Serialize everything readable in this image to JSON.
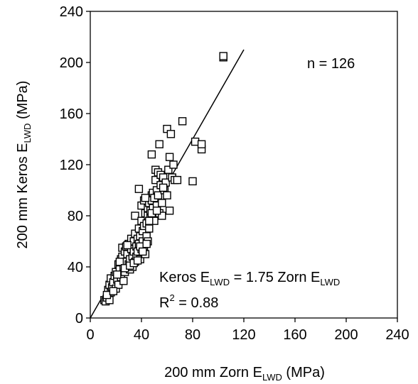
{
  "chart_data": {
    "type": "scatter",
    "title": "",
    "xlabel": {
      "prefix": "200 mm Zorn E",
      "sub": "LWD",
      "suffix": " (MPa)"
    },
    "ylabel": {
      "prefix": "200 mm Keros E",
      "sub": "LWD",
      "suffix": " (MPa)"
    },
    "xlim": [
      0,
      240
    ],
    "ylim": [
      0,
      240
    ],
    "xticks": [
      "0",
      "40",
      "80",
      "120",
      "160",
      "200",
      "240"
    ],
    "yticks": [
      "0",
      "40",
      "80",
      "120",
      "160",
      "200",
      "240"
    ],
    "grid": false,
    "legend": "none",
    "marker": "open-square",
    "annotations": {
      "n": "n = 126",
      "equation": {
        "a": "Keros E",
        "a_sub": "LWD",
        "b": " = 1.75 Zorn E",
        "b_sub": "LWD"
      },
      "r2": {
        "a": "R",
        "sup": "2",
        "b": " = 0.88"
      }
    },
    "fit_line": {
      "slope": 1.75,
      "intercept": 0,
      "x_range": [
        0,
        120
      ]
    },
    "points": [
      [
        11,
        14
      ],
      [
        12,
        13
      ],
      [
        13,
        16
      ],
      [
        14,
        22
      ],
      [
        15,
        14
      ],
      [
        15,
        26
      ],
      [
        16,
        20
      ],
      [
        16,
        31
      ],
      [
        17,
        24
      ],
      [
        18,
        28
      ],
      [
        19,
        33
      ],
      [
        20,
        23
      ],
      [
        20,
        36
      ],
      [
        21,
        30
      ],
      [
        22,
        26
      ],
      [
        22,
        42
      ],
      [
        23,
        38
      ],
      [
        24,
        46
      ],
      [
        24,
        32
      ],
      [
        25,
        48
      ],
      [
        25,
        55
      ],
      [
        26,
        40
      ],
      [
        26,
        29
      ],
      [
        27,
        52
      ],
      [
        27,
        36
      ],
      [
        28,
        44
      ],
      [
        28,
        56
      ],
      [
        29,
        50
      ],
      [
        30,
        42
      ],
      [
        30,
        58
      ],
      [
        31,
        46
      ],
      [
        31,
        38
      ],
      [
        32,
        54
      ],
      [
        32,
        62
      ],
      [
        33,
        48
      ],
      [
        33,
        40
      ],
      [
        34,
        60
      ],
      [
        34,
        52
      ],
      [
        35,
        44
      ],
      [
        35,
        66
      ],
      [
        35,
        80
      ],
      [
        36,
        56
      ],
      [
        36,
        48
      ],
      [
        37,
        62
      ],
      [
        37,
        52
      ],
      [
        38,
        70
      ],
      [
        38,
        58
      ],
      [
        38,
        101
      ],
      [
        39,
        46
      ],
      [
        39,
        64
      ],
      [
        40,
        76
      ],
      [
        40,
        54
      ],
      [
        40,
        88
      ],
      [
        41,
        60
      ],
      [
        41,
        68
      ],
      [
        42,
        56
      ],
      [
        42,
        72
      ],
      [
        42,
        92
      ],
      [
        43,
        50
      ],
      [
        43,
        82
      ],
      [
        44,
        64
      ],
      [
        44,
        74
      ],
      [
        45,
        60
      ],
      [
        45,
        86
      ],
      [
        45,
        80
      ],
      [
        46,
        90
      ],
      [
        46,
        70
      ],
      [
        47,
        78
      ],
      [
        47,
        84
      ],
      [
        48,
        128
      ],
      [
        48,
        96
      ],
      [
        48,
        92
      ],
      [
        49,
        86
      ],
      [
        49,
        98
      ],
      [
        50,
        80
      ],
      [
        50,
        94
      ],
      [
        50,
        76
      ],
      [
        51,
        108
      ],
      [
        51,
        116
      ],
      [
        52,
        88
      ],
      [
        52,
        100
      ],
      [
        53,
        114
      ],
      [
        53,
        96
      ],
      [
        54,
        82
      ],
      [
        54,
        136
      ],
      [
        55,
        112
      ],
      [
        55,
        104
      ],
      [
        56,
        80
      ],
      [
        56,
        90
      ],
      [
        57,
        110
      ],
      [
        58,
        100
      ],
      [
        59,
        106
      ],
      [
        60,
        148
      ],
      [
        60,
        96
      ],
      [
        61,
        116
      ],
      [
        62,
        126
      ],
      [
        62,
        84
      ],
      [
        63,
        144
      ],
      [
        64,
        110
      ],
      [
        65,
        120
      ],
      [
        66,
        108
      ],
      [
        68,
        108
      ],
      [
        72,
        154
      ],
      [
        80,
        107
      ],
      [
        82,
        138
      ],
      [
        87,
        132
      ],
      [
        87,
        136
      ],
      [
        104,
        204
      ],
      [
        104,
        205
      ],
      [
        13,
        18
      ],
      [
        18,
        21
      ],
      [
        21,
        34
      ],
      [
        23,
        44
      ],
      [
        27,
        39
      ],
      [
        29,
        57
      ],
      [
        31,
        41
      ],
      [
        34,
        43
      ],
      [
        37,
        45
      ],
      [
        39,
        56
      ],
      [
        41,
        52
      ],
      [
        44,
        58
      ],
      [
        46,
        76
      ],
      [
        48,
        82
      ],
      [
        52,
        84
      ],
      [
        57,
        102
      ],
      [
        43,
        94
      ]
    ]
  }
}
